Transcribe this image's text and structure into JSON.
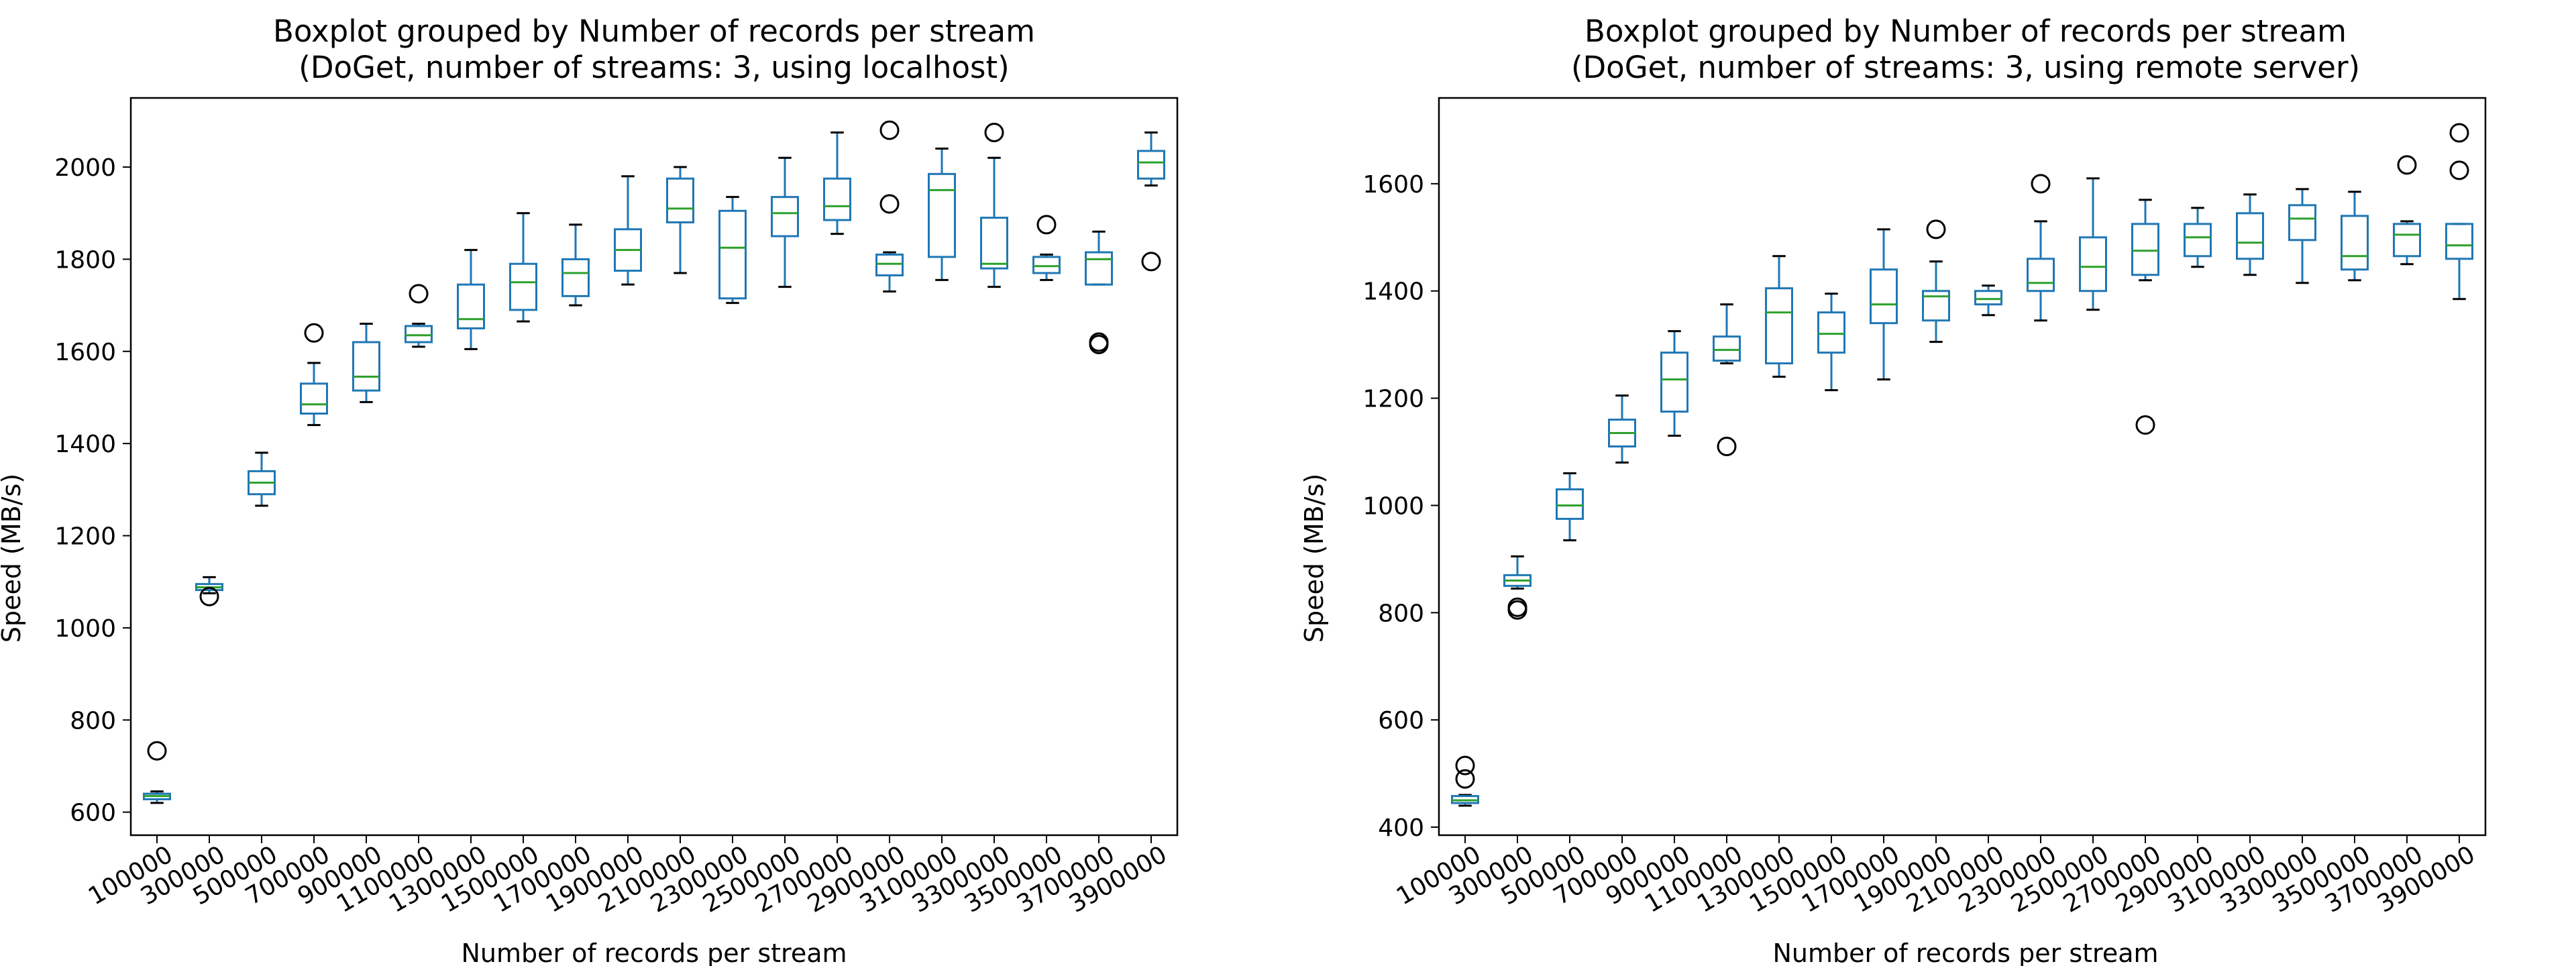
{
  "chart_data": [
    {
      "type": "box",
      "title": "Boxplot grouped by Number of records per stream",
      "subtitle": "(DoGet, number of streams: 3, using localhost)",
      "xlabel": "Number of records per stream",
      "ylabel": "Speed (MB/s)",
      "ylim": [
        550,
        2150
      ],
      "yticks": [
        600,
        800,
        1000,
        1200,
        1400,
        1600,
        1800,
        2000
      ],
      "categories": [
        "100000",
        "300000",
        "500000",
        "700000",
        "900000",
        "1100000",
        "1300000",
        "1500000",
        "1700000",
        "1900000",
        "2100000",
        "2300000",
        "2500000",
        "2700000",
        "2900000",
        "3100000",
        "3300000",
        "3500000",
        "3700000",
        "3900000"
      ],
      "boxes": [
        {
          "whislo": 620,
          "q1": 628,
          "med": 635,
          "q3": 640,
          "whishi": 645,
          "fliers": [
            733
          ]
        },
        {
          "whislo": 1075,
          "q1": 1082,
          "med": 1088,
          "q3": 1095,
          "whishi": 1110,
          "fliers": [
            1068
          ]
        },
        {
          "whislo": 1265,
          "q1": 1290,
          "med": 1315,
          "q3": 1340,
          "whishi": 1380,
          "fliers": []
        },
        {
          "whislo": 1440,
          "q1": 1465,
          "med": 1485,
          "q3": 1530,
          "whishi": 1575,
          "fliers": [
            1640
          ]
        },
        {
          "whislo": 1490,
          "q1": 1515,
          "med": 1545,
          "q3": 1620,
          "whishi": 1660,
          "fliers": []
        },
        {
          "whislo": 1610,
          "q1": 1620,
          "med": 1635,
          "q3": 1655,
          "whishi": 1660,
          "fliers": [
            1725
          ]
        },
        {
          "whislo": 1605,
          "q1": 1650,
          "med": 1670,
          "q3": 1745,
          "whishi": 1820,
          "fliers": []
        },
        {
          "whislo": 1665,
          "q1": 1690,
          "med": 1750,
          "q3": 1790,
          "whishi": 1900,
          "fliers": []
        },
        {
          "whislo": 1700,
          "q1": 1720,
          "med": 1770,
          "q3": 1800,
          "whishi": 1875,
          "fliers": []
        },
        {
          "whislo": 1745,
          "q1": 1775,
          "med": 1820,
          "q3": 1865,
          "whishi": 1980,
          "fliers": []
        },
        {
          "whislo": 1770,
          "q1": 1880,
          "med": 1910,
          "q3": 1975,
          "whishi": 2000,
          "fliers": []
        },
        {
          "whislo": 1705,
          "q1": 1715,
          "med": 1825,
          "q3": 1905,
          "whishi": 1935,
          "fliers": []
        },
        {
          "whislo": 1740,
          "q1": 1850,
          "med": 1900,
          "q3": 1935,
          "whishi": 2020,
          "fliers": []
        },
        {
          "whislo": 1855,
          "q1": 1885,
          "med": 1915,
          "q3": 1975,
          "whishi": 2075,
          "fliers": []
        },
        {
          "whislo": 1730,
          "q1": 1765,
          "med": 1790,
          "q3": 1810,
          "whishi": 1815,
          "fliers": [
            1920,
            2080
          ]
        },
        {
          "whislo": 1755,
          "q1": 1805,
          "med": 1950,
          "q3": 1985,
          "whishi": 2040,
          "fliers": []
        },
        {
          "whislo": 1740,
          "q1": 1780,
          "med": 1790,
          "q3": 1890,
          "whishi": 2020,
          "fliers": [
            2075
          ]
        },
        {
          "whislo": 1755,
          "q1": 1770,
          "med": 1785,
          "q3": 1805,
          "whishi": 1810,
          "fliers": [
            1875
          ]
        },
        {
          "whislo": 1745,
          "q1": 1745,
          "med": 1800,
          "q3": 1815,
          "whishi": 1860,
          "fliers": [
            1620,
            1615
          ]
        },
        {
          "whislo": 1960,
          "q1": 1975,
          "med": 2010,
          "q3": 2035,
          "whishi": 2075,
          "fliers": [
            1795
          ]
        }
      ],
      "box_color": "#1f77b4",
      "median_color": "#2ca02c"
    },
    {
      "type": "box",
      "title": "Boxplot grouped by Number of records per stream",
      "subtitle": "(DoGet, number of streams: 3, using remote server)",
      "xlabel": "Number of records per stream",
      "ylabel": "Speed (MB/s)",
      "ylim": [
        385,
        1760
      ],
      "yticks": [
        400,
        600,
        800,
        1000,
        1200,
        1400,
        1600
      ],
      "categories": [
        "100000",
        "300000",
        "500000",
        "700000",
        "900000",
        "1100000",
        "1300000",
        "1500000",
        "1700000",
        "1900000",
        "2100000",
        "2300000",
        "2500000",
        "2700000",
        "2900000",
        "3100000",
        "3300000",
        "3500000",
        "3700000",
        "3900000"
      ],
      "boxes": [
        {
          "whislo": 440,
          "q1": 445,
          "med": 450,
          "q3": 458,
          "whishi": 460,
          "fliers": [
            490,
            515
          ]
        },
        {
          "whislo": 845,
          "q1": 850,
          "med": 860,
          "q3": 870,
          "whishi": 905,
          "fliers": [
            810,
            805
          ]
        },
        {
          "whislo": 935,
          "q1": 975,
          "med": 1000,
          "q3": 1030,
          "whishi": 1060,
          "fliers": []
        },
        {
          "whislo": 1080,
          "q1": 1110,
          "med": 1135,
          "q3": 1160,
          "whishi": 1205,
          "fliers": []
        },
        {
          "whislo": 1130,
          "q1": 1175,
          "med": 1235,
          "q3": 1285,
          "whishi": 1325,
          "fliers": []
        },
        {
          "whislo": 1265,
          "q1": 1270,
          "med": 1290,
          "q3": 1315,
          "whishi": 1375,
          "fliers": [
            1110
          ]
        },
        {
          "whislo": 1240,
          "q1": 1265,
          "med": 1360,
          "q3": 1405,
          "whishi": 1465,
          "fliers": []
        },
        {
          "whislo": 1215,
          "q1": 1285,
          "med": 1320,
          "q3": 1360,
          "whishi": 1395,
          "fliers": []
        },
        {
          "whislo": 1235,
          "q1": 1340,
          "med": 1375,
          "q3": 1440,
          "whishi": 1515,
          "fliers": []
        },
        {
          "whislo": 1305,
          "q1": 1345,
          "med": 1390,
          "q3": 1400,
          "whishi": 1455,
          "fliers": [
            1515
          ]
        },
        {
          "whislo": 1355,
          "q1": 1375,
          "med": 1385,
          "q3": 1400,
          "whishi": 1410,
          "fliers": []
        },
        {
          "whislo": 1345,
          "q1": 1400,
          "med": 1415,
          "q3": 1460,
          "whishi": 1530,
          "fliers": [
            1600
          ]
        },
        {
          "whislo": 1365,
          "q1": 1400,
          "med": 1445,
          "q3": 1500,
          "whishi": 1610,
          "fliers": []
        },
        {
          "whislo": 1420,
          "q1": 1430,
          "med": 1475,
          "q3": 1525,
          "whishi": 1570,
          "fliers": [
            1150
          ]
        },
        {
          "whislo": 1445,
          "q1": 1465,
          "med": 1500,
          "q3": 1525,
          "whishi": 1555,
          "fliers": []
        },
        {
          "whislo": 1430,
          "q1": 1460,
          "med": 1490,
          "q3": 1545,
          "whishi": 1580,
          "fliers": []
        },
        {
          "whislo": 1415,
          "q1": 1495,
          "med": 1535,
          "q3": 1560,
          "whishi": 1590,
          "fliers": []
        },
        {
          "whislo": 1420,
          "q1": 1440,
          "med": 1465,
          "q3": 1540,
          "whishi": 1585,
          "fliers": []
        },
        {
          "whislo": 1450,
          "q1": 1465,
          "med": 1505,
          "q3": 1525,
          "whishi": 1530,
          "fliers": [
            1635
          ]
        },
        {
          "whislo": 1385,
          "q1": 1460,
          "med": 1485,
          "q3": 1525,
          "whishi": 1525,
          "fliers": [
            1625,
            1695
          ]
        }
      ],
      "box_color": "#1f77b4",
      "median_color": "#2ca02c"
    }
  ]
}
